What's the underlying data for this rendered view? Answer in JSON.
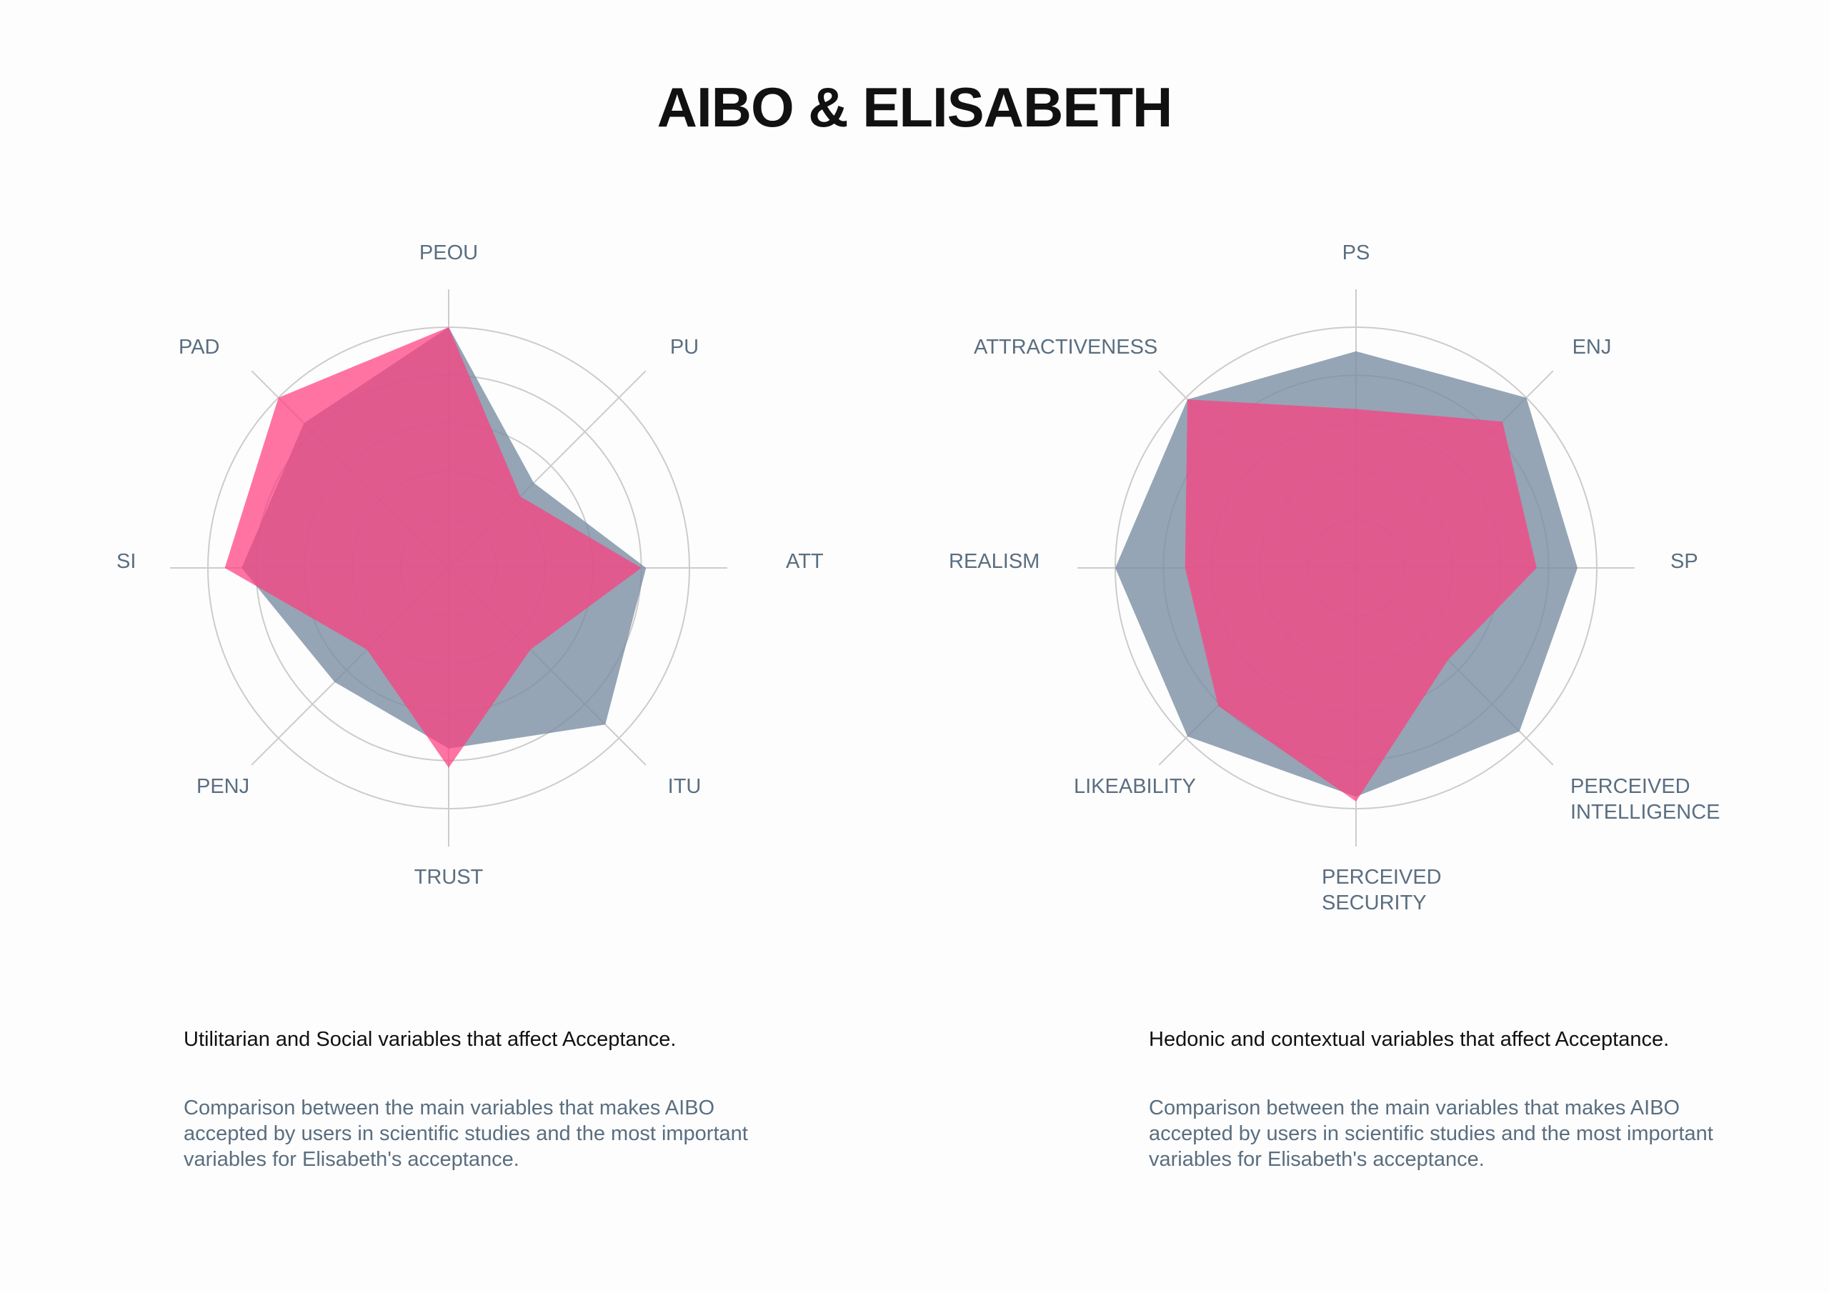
{
  "title": "AIBO & ELISABETH",
  "colors": {
    "aibo": "#7a8fa3",
    "elisabeth": "#ff3d7f",
    "grid": "#cccccc",
    "label": "#5a6e80"
  },
  "chart_data": [
    {
      "type": "radar",
      "axes": [
        "PEOU",
        "PU",
        "ATT",
        "ITU",
        "TRUST",
        "PENJ",
        "SI",
        "PAD"
      ],
      "rlim": [
        0,
        1
      ],
      "grid": true,
      "series": [
        {
          "color": "#7a8fa3",
          "values": [
            1.0,
            0.5,
            0.82,
            0.92,
            0.75,
            0.67,
            0.86,
            0.85
          ]
        },
        {
          "color": "#ff3d7f",
          "values": [
            1.0,
            0.42,
            0.8,
            0.48,
            0.83,
            0.48,
            0.93,
            1.0
          ]
        }
      ]
    },
    {
      "type": "radar",
      "axes": [
        "PS",
        "ENJ",
        "SP",
        "PERCEIVED INTELLIGENCE",
        "PERCEIVED SECURITY",
        "LIKEABILITY",
        "REALISM",
        "ATTRACTIVENESS"
      ],
      "axis_label_lines": [
        [
          "PS"
        ],
        [
          "ENJ"
        ],
        [
          "SP"
        ],
        [
          "PERCEIVED",
          "INTELLIGENCE"
        ],
        [
          "PERCEIVED",
          "SECURITY"
        ],
        [
          "LIKEABILITY"
        ],
        [
          "REALISM"
        ],
        [
          "ATTRACTIVENESS"
        ]
      ],
      "rlim": [
        0,
        1
      ],
      "grid": true,
      "series": [
        {
          "color": "#7a8fa3",
          "values": [
            0.9,
            1.0,
            0.92,
            0.96,
            0.95,
            0.99,
            1.0,
            0.99
          ]
        },
        {
          "color": "#ff3d7f",
          "values": [
            0.66,
            0.86,
            0.75,
            0.54,
            0.97,
            0.81,
            0.71,
            0.99
          ]
        }
      ]
    }
  ],
  "captions": [
    {
      "heading": "Utilitarian and Social variables that affect Acceptance.",
      "body": "Comparison between the main variables that makes AIBO accepted by users in scientific studies and the most important variables for Elisabeth's acceptance."
    },
    {
      "heading": "Hedonic and contextual variables that affect Acceptance.",
      "body": "Comparison between the main variables that makes AIBO accepted by users in scientific studies and the most important variables for Elisabeth's acceptance."
    }
  ]
}
